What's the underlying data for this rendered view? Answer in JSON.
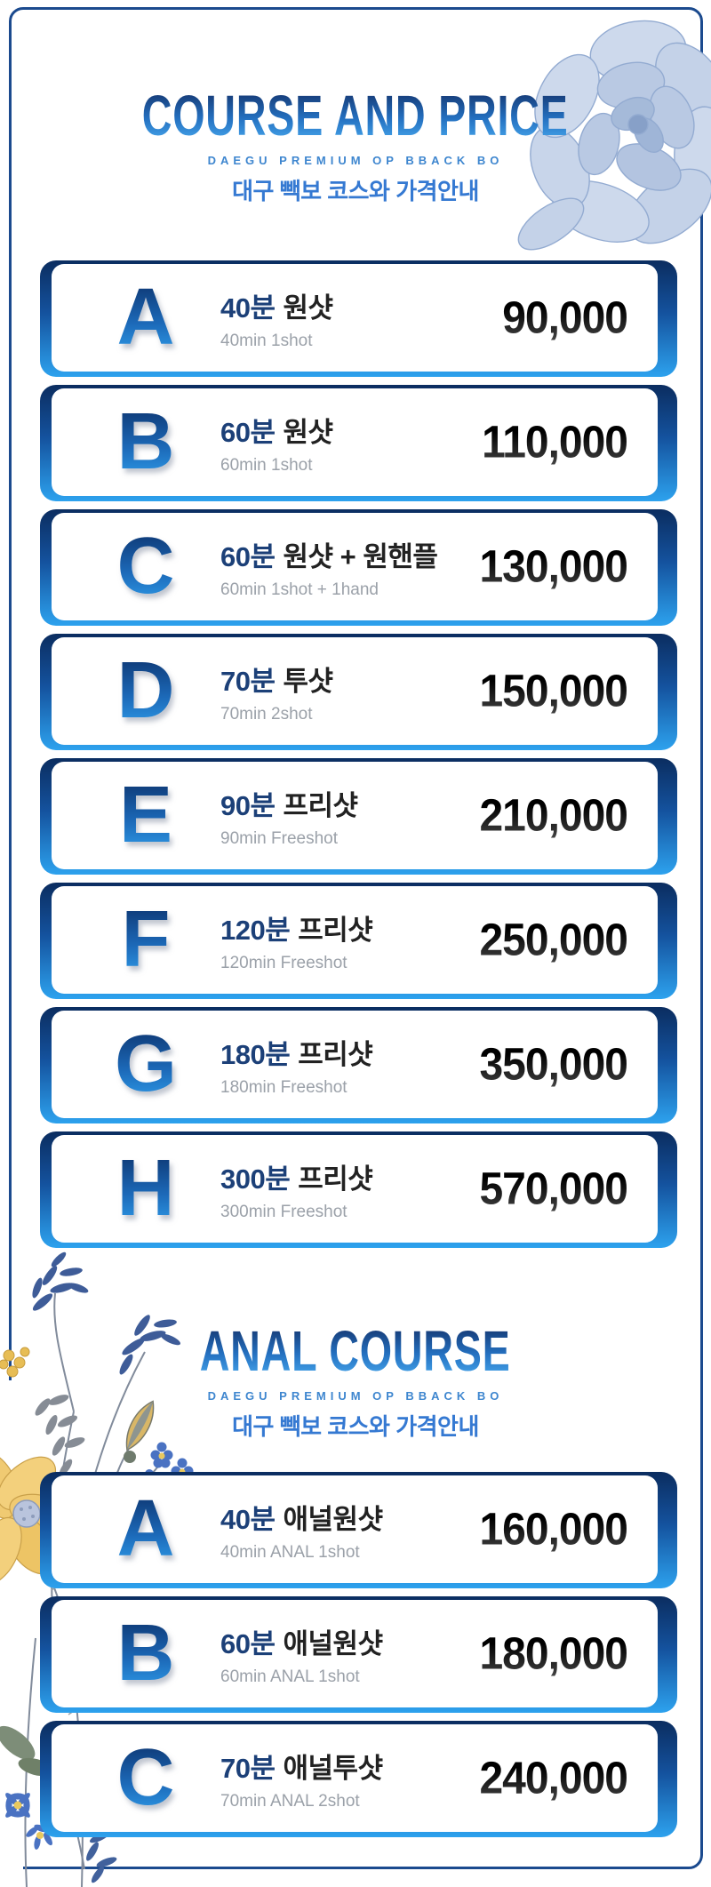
{
  "frame": {
    "border_color": "#1b4a8e"
  },
  "sections": [
    {
      "id": "main",
      "title": "COURSE AND PRICE",
      "tagline": "DAEGU PREMIUM OP BBACK BO",
      "subtitle_kr": "대구 빽보 코스와 가격안내",
      "courses": [
        {
          "letter": "A",
          "duration_kr": "40분",
          "name_kr": "원샷",
          "name_en": "40min 1shot",
          "price": "90,000"
        },
        {
          "letter": "B",
          "duration_kr": "60분",
          "name_kr": "원샷",
          "name_en": "60min 1shot",
          "price": "110,000"
        },
        {
          "letter": "C",
          "duration_kr": "60분",
          "name_kr": "원샷 + 원핸플",
          "name_en": "60min 1shot + 1hand",
          "price": "130,000"
        },
        {
          "letter": "D",
          "duration_kr": "70분",
          "name_kr": "투샷",
          "name_en": "70min 2shot",
          "price": "150,000"
        },
        {
          "letter": "E",
          "duration_kr": "90분",
          "name_kr": "프리샷",
          "name_en": "90min Freeshot",
          "price": "210,000"
        },
        {
          "letter": "F",
          "duration_kr": "120분",
          "name_kr": "프리샷",
          "name_en": "120min Freeshot",
          "price": "250,000"
        },
        {
          "letter": "G",
          "duration_kr": "180분",
          "name_kr": "프리샷",
          "name_en": "180min Freeshot",
          "price": "350,000"
        },
        {
          "letter": "H",
          "duration_kr": "300분",
          "name_kr": "프리샷",
          "name_en": "300min Freeshot",
          "price": "570,000"
        }
      ]
    },
    {
      "id": "anal",
      "title": "ANAL COURSE",
      "tagline": "DAEGU PREMIUM OP BBACK BO",
      "subtitle_kr": "대구 빽보 코스와 가격안내",
      "courses": [
        {
          "letter": "A",
          "duration_kr": "40분",
          "name_kr": "애널원샷",
          "name_en": "40min ANAL 1shot",
          "price": "160,000"
        },
        {
          "letter": "B",
          "duration_kr": "60분",
          "name_kr": "애널원샷",
          "name_en": "60min ANAL 1shot",
          "price": "180,000"
        },
        {
          "letter": "C",
          "duration_kr": "70분",
          "name_kr": "애널투샷",
          "name_en": "70min ANAL 2shot",
          "price": "240,000"
        }
      ]
    }
  ],
  "colors": {
    "title_gradient_top": "#132f66",
    "title_gradient_bottom": "#49abf0",
    "tagline_text": "#3e86cf",
    "subtitle_kr_text": "#3579d2",
    "card_frame_top": "#0b2d60",
    "card_frame_bottom": "#2da2ee",
    "duration_text": "#1c4078",
    "name_text": "#222222",
    "name_en_text": "#9ba1a9",
    "price_gradient_top": "#000000",
    "price_gradient_bottom": "#4a4a4a"
  },
  "decorations": {
    "top_right": "blue-rose-illustration",
    "bottom_left": "wildflower-bouquet-illustration"
  }
}
